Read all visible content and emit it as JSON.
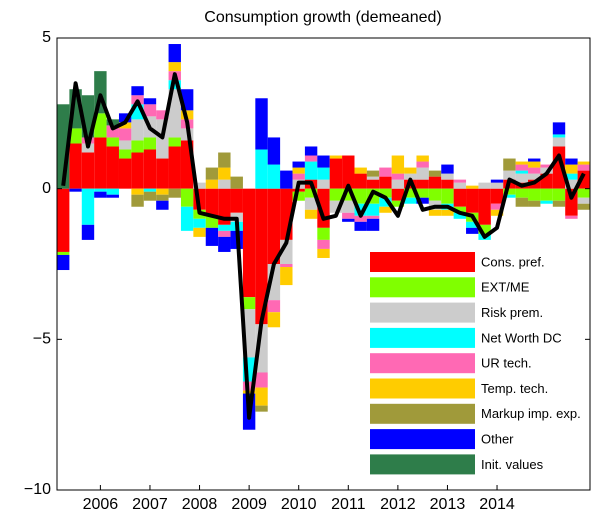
{
  "chart_data": {
    "type": "bar",
    "title": "Consumption growth (demeaned)",
    "categories": [
      null,
      null,
      null,
      "2006",
      null,
      null,
      null,
      "2007",
      null,
      null,
      null,
      "2008",
      null,
      null,
      null,
      "2009",
      null,
      null,
      null,
      "2010",
      null,
      null,
      null,
      "2011",
      null,
      null,
      null,
      "2012",
      null,
      null,
      null,
      "2013",
      null,
      null,
      null,
      "2014",
      null,
      null,
      null,
      null,
      null,
      null,
      null
    ],
    "stacked": true,
    "series": [
      {
        "name": "Cons. pref.",
        "color": "#ff0000",
        "values": [
          -2.1,
          1.5,
          1.2,
          1.7,
          1.4,
          1.0,
          1.2,
          1.3,
          1.0,
          1.4,
          1.6,
          -0.7,
          -0.9,
          -1.2,
          -0.8,
          -3.6,
          -4.5,
          -2.5,
          -1.7,
          -0.1,
          0.3,
          -1.3,
          1.0,
          1.1,
          0.5,
          0.3,
          0.4,
          -0.4,
          0.3,
          0.3,
          0.4,
          0.3,
          -0.6,
          -0.8,
          -1.2,
          -0.5,
          0.3,
          0.2,
          0.3,
          0.5,
          1.4,
          -0.9,
          0.6
        ]
      },
      {
        "name": "EXT/ME",
        "color": "#80ff00",
        "values": [
          -0.1,
          0.5,
          0,
          0.8,
          0.3,
          0.3,
          0.4,
          0.4,
          0,
          0.3,
          -0.6,
          -0.3,
          -0.4,
          0,
          0,
          -0.4,
          0,
          0,
          0,
          -0.3,
          -0.3,
          -0.4,
          -0.4,
          -0.4,
          -0.5,
          -0.5,
          -0.3,
          -0.2,
          -0.3,
          -0.3,
          -0.4,
          -0.5,
          -0.2,
          -0.3,
          -0.3,
          0,
          -0.2,
          -0.3,
          -0.4,
          -0.4,
          -0.4,
          0,
          -0.3
        ]
      },
      {
        "name": "Risk prem.",
        "color": "#cccccc",
        "values": [
          0,
          0,
          0.3,
          0,
          0,
          0.3,
          0.7,
          0.7,
          1.3,
          1.6,
          0.4,
          0.2,
          0,
          0.3,
          -0.3,
          -1.6,
          -1.6,
          -1.2,
          -0.8,
          0.3,
          -0.4,
          0.3,
          -0.4,
          -0.4,
          0,
          0.1,
          0,
          0.3,
          0.2,
          0.4,
          -0.3,
          0.2,
          0.2,
          0,
          0.2,
          0.2,
          0.3,
          0.3,
          0.2,
          0.2,
          0.3,
          0.3,
          -0.2
        ]
      },
      {
        "name": "Net Worth DC",
        "color": "#00ffff",
        "values": [
          0,
          0,
          -1.2,
          -0.1,
          -0.2,
          0,
          0.5,
          -0.1,
          0,
          0.3,
          -0.8,
          -0.3,
          0,
          -0.2,
          -0.3,
          -0.8,
          1.3,
          0.8,
          0,
          0,
          0.6,
          0.4,
          0,
          0,
          -0.4,
          -0.4,
          -0.3,
          0,
          -0.2,
          0,
          0,
          -0.2,
          -0.2,
          -0.2,
          -0.2,
          0,
          -0.1,
          0.1,
          0,
          -0.1,
          0.1,
          0.2,
          0
        ]
      },
      {
        "name": "UR tech.",
        "color": "#ff69b4",
        "values": [
          0,
          0,
          0.2,
          0,
          0.4,
          0.4,
          0.3,
          0.4,
          0.3,
          0.3,
          0.3,
          0,
          0,
          -0.2,
          0,
          -0.3,
          -0.5,
          -0.4,
          -0.1,
          0.2,
          0.2,
          -0.3,
          0,
          -0.2,
          -0.2,
          -0.1,
          0.3,
          0.2,
          0,
          0.2,
          0,
          0,
          0.1,
          0,
          0,
          -0.2,
          0,
          0.2,
          0.2,
          0.1,
          0,
          -0.1,
          0.2
        ]
      },
      {
        "name": "Temp. tech.",
        "color": "#ffcc00",
        "values": [
          0,
          0,
          0,
          0,
          0,
          0.2,
          -0.2,
          0,
          -0.2,
          0.3,
          0.3,
          -0.3,
          0.3,
          0.4,
          0,
          -0.1,
          -0.6,
          -0.5,
          -0.6,
          0.2,
          -0.3,
          -0.3,
          0.1,
          0,
          0.2,
          0,
          -0.2,
          0.6,
          0.2,
          0.2,
          -0.2,
          -0.2,
          0,
          0.1,
          0,
          -0.2,
          0,
          0.1,
          0.2,
          0,
          0,
          0.3,
          0.1
        ]
      },
      {
        "name": "Markup imp. exp.",
        "color": "#a09a3a",
        "values": [
          0,
          0,
          0,
          0,
          0,
          0,
          -0.4,
          -0.3,
          -0.2,
          -0.3,
          0,
          0,
          0.4,
          0.5,
          0.4,
          0,
          -0.2,
          0,
          0,
          0,
          0,
          0,
          0,
          0,
          0,
          0.2,
          0,
          0,
          0,
          0,
          0.2,
          0,
          0,
          0,
          0,
          0,
          0.4,
          -0.3,
          -0.2,
          0,
          -0.2,
          0,
          -0.2
        ]
      },
      {
        "name": "Other",
        "color": "#0000ff",
        "values": [
          -0.5,
          -0.1,
          -0.5,
          -0.2,
          -0.1,
          0.3,
          0.3,
          0.2,
          -0.3,
          0.6,
          0.7,
          0,
          -0.6,
          -0.5,
          -0.6,
          -1.2,
          1.7,
          0.9,
          0.6,
          0.2,
          0.3,
          0.4,
          0,
          -0.1,
          -0.3,
          -0.4,
          0,
          0,
          0,
          -0.2,
          0,
          0.3,
          0,
          -0.2,
          0,
          0.1,
          0,
          0,
          0.1,
          0,
          0.4,
          0.2,
          0
        ]
      },
      {
        "name": "Init. values",
        "color": "#2e7d4a",
        "values": [
          2.8,
          1.3,
          1.4,
          1.4,
          0.2,
          0,
          0,
          0,
          0,
          0,
          0,
          0,
          0,
          0,
          0,
          0,
          0,
          0,
          0,
          0,
          0,
          0,
          0,
          0,
          0,
          0,
          0,
          0,
          0,
          0,
          0,
          0,
          0,
          0,
          0,
          0,
          0,
          0,
          0,
          0,
          0,
          0,
          0
        ]
      }
    ],
    "line": {
      "color": "#000000",
      "values": [
        0.1,
        3.5,
        1.4,
        3.1,
        2.0,
        2.2,
        2.9,
        2.0,
        1.7,
        3.8,
        2.2,
        -0.8,
        -0.9,
        -1.0,
        -1.0,
        -7.6,
        -4.4,
        -2.5,
        -1.8,
        0.2,
        0.2,
        -1.0,
        -0.9,
        0.1,
        -0.9,
        -0.1,
        -0.3,
        -0.9,
        0.3,
        -0.7,
        -0.6,
        -0.6,
        -0.8,
        -0.9,
        -1.6,
        -1.3,
        0.3,
        0.1,
        0.2,
        0.5,
        1.1,
        -0.3,
        0.5
      ]
    },
    "ylim": [
      -10,
      5
    ],
    "yticks": [
      {
        "value": -10,
        "label": "−10"
      },
      {
        "value": -5,
        "label": "−5"
      },
      0,
      5
    ],
    "grid": false,
    "legend": "lower right"
  }
}
